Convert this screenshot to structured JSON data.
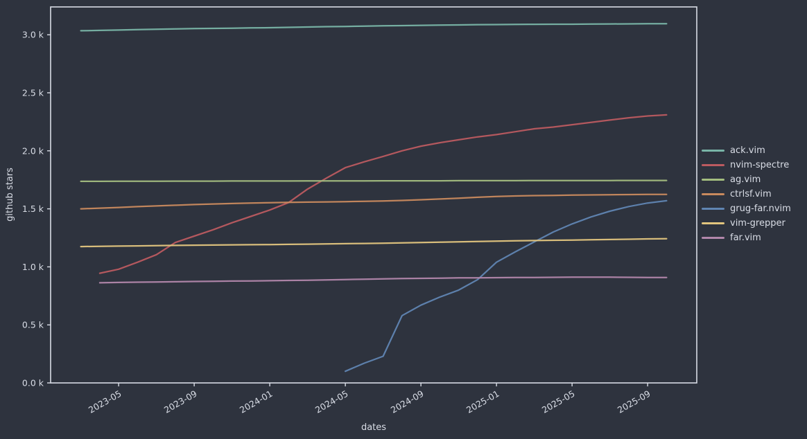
{
  "figure": {
    "background_color": "#2e333e",
    "foreground_color": "#d9dde6"
  },
  "chart_data": {
    "type": "line",
    "title": "",
    "xlabel": "dates",
    "ylabel": "github stars",
    "x_tick_labels": [
      "2023-05",
      "2023-09",
      "2024-01",
      "2024-05",
      "2024-09",
      "2025-01",
      "2025-05",
      "2025-09"
    ],
    "x_tick_rotation_deg": 30,
    "y_tick_labels": [
      "0.0 k",
      "0.5 k",
      "1.0 k",
      "1.5 k",
      "2.0 k",
      "2.5 k",
      "3.0 k"
    ],
    "y_unit": "thousands of github stars",
    "ylim_k": [
      0,
      3.24
    ],
    "xlim_months_from_2023_01": [
      0.4,
      34.6
    ],
    "grid": false,
    "legend_position": "center-right, outside plot area",
    "series": [
      {
        "name": "ack.vim",
        "color": "#79b5a7",
        "start": "2023-03",
        "monthly_values_k": [
          3.035,
          3.038,
          3.041,
          3.044,
          3.047,
          3.05,
          3.053,
          3.055,
          3.057,
          3.059,
          3.061,
          3.064,
          3.067,
          3.07,
          3.072,
          3.075,
          3.077,
          3.079,
          3.081,
          3.083,
          3.085,
          3.087,
          3.088,
          3.089,
          3.09,
          3.091,
          3.091,
          3.092,
          3.093,
          3.094,
          3.095,
          3.095
        ]
      },
      {
        "name": "nvim-spectre",
        "color": "#bc5b60",
        "start": "2023-04",
        "monthly_values_k": [
          0.945,
          0.98,
          1.04,
          1.105,
          1.21,
          1.265,
          1.32,
          1.38,
          1.435,
          1.49,
          1.555,
          1.67,
          1.765,
          1.855,
          1.905,
          1.952,
          2.0,
          2.04,
          2.07,
          2.095,
          2.12,
          2.14,
          2.165,
          2.19,
          2.205,
          2.225,
          2.245,
          2.265,
          2.285,
          2.3,
          2.31
        ]
      },
      {
        "name": "ag.vim",
        "color": "#a3bd7f",
        "start": "2023-03",
        "monthly_values_k": [
          1.737,
          1.737,
          1.738,
          1.738,
          1.738,
          1.739,
          1.739,
          1.739,
          1.74,
          1.74,
          1.74,
          1.74,
          1.741,
          1.741,
          1.741,
          1.741,
          1.742,
          1.742,
          1.742,
          1.742,
          1.743,
          1.743,
          1.743,
          1.743,
          1.744,
          1.744,
          1.744,
          1.744,
          1.744,
          1.745,
          1.745,
          1.745
        ]
      },
      {
        "name": "ctrlsf.vim",
        "color": "#c98a5e",
        "start": "2023-03",
        "monthly_values_k": [
          1.5,
          1.506,
          1.512,
          1.519,
          1.525,
          1.531,
          1.537,
          1.542,
          1.546,
          1.55,
          1.553,
          1.556,
          1.558,
          1.56,
          1.562,
          1.565,
          1.568,
          1.572,
          1.578,
          1.585,
          1.592,
          1.6,
          1.607,
          1.611,
          1.614,
          1.616,
          1.618,
          1.62,
          1.622,
          1.623,
          1.624,
          1.625
        ]
      },
      {
        "name": "grug-far.nvim",
        "color": "#6085b2",
        "start": "2024-05",
        "monthly_values_k": [
          0.1,
          0.17,
          0.23,
          0.58,
          0.67,
          0.74,
          0.8,
          0.89,
          1.04,
          1.13,
          1.215,
          1.3,
          1.37,
          1.43,
          1.48,
          1.52,
          1.55,
          1.57
        ]
      },
      {
        "name": "vim-grepper",
        "color": "#e2c57e",
        "start": "2023-03",
        "monthly_values_k": [
          1.175,
          1.177,
          1.179,
          1.181,
          1.183,
          1.185,
          1.187,
          1.188,
          1.19,
          1.191,
          1.192,
          1.194,
          1.196,
          1.198,
          1.2,
          1.202,
          1.204,
          1.207,
          1.21,
          1.213,
          1.216,
          1.219,
          1.222,
          1.225,
          1.227,
          1.229,
          1.231,
          1.234,
          1.236,
          1.238,
          1.241,
          1.243
        ]
      },
      {
        "name": "far.vim",
        "color": "#b287ab",
        "start": "2023-04",
        "monthly_values_k": [
          0.863,
          0.866,
          0.868,
          0.87,
          0.872,
          0.874,
          0.876,
          0.878,
          0.879,
          0.881,
          0.883,
          0.885,
          0.888,
          0.891,
          0.894,
          0.897,
          0.899,
          0.901,
          0.903,
          0.905,
          0.906,
          0.907,
          0.908,
          0.909,
          0.91,
          0.911,
          0.911,
          0.911,
          0.91,
          0.909,
          0.908
        ]
      }
    ]
  }
}
